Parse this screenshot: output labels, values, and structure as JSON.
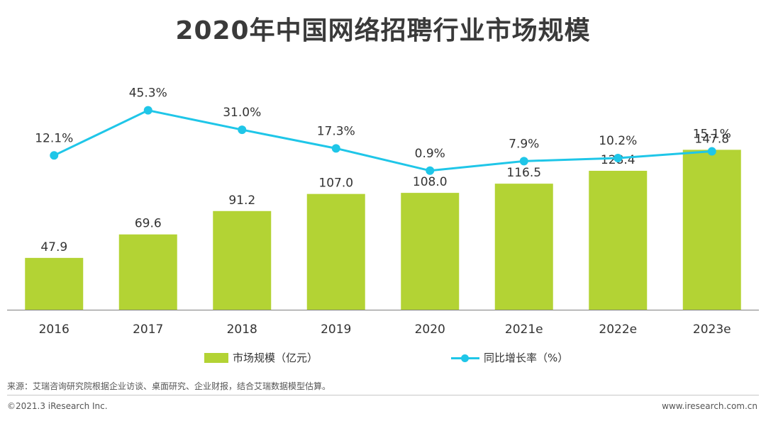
{
  "title": "2020年中国网络招聘行业市场规模",
  "colors": {
    "bar": "#b3d334",
    "line": "#1fc6e8",
    "axis": "#7f7f7f",
    "text": "#333333"
  },
  "chart_data": {
    "type": "bar+line",
    "title": "2020年中国网络招聘行业市场规模",
    "categories": [
      "2016",
      "2017",
      "2018",
      "2019",
      "2020",
      "2021e",
      "2022e",
      "2023e"
    ],
    "series": [
      {
        "name": "市场规模（亿元）",
        "type": "bar",
        "axis": "left",
        "values": [
          47.9,
          69.6,
          91.2,
          107.0,
          108.0,
          116.5,
          128.4,
          147.8
        ],
        "labels": [
          "47.9",
          "69.6",
          "91.2",
          "107.0",
          "108.0",
          "116.5",
          "128.4",
          "147.8"
        ]
      },
      {
        "name": "同比增长率（%）",
        "type": "line",
        "axis": "right",
        "values": [
          12.1,
          45.3,
          31.0,
          17.3,
          0.9,
          7.9,
          10.2,
          15.1
        ],
        "labels": [
          "12.1%",
          "45.3%",
          "31.0%",
          "17.3%",
          "0.9%",
          "7.9%",
          "10.2%",
          "15.1%"
        ]
      }
    ],
    "ylim_left": [
      0,
      150
    ],
    "ylim_right": [
      -150,
      90
    ],
    "grid": false,
    "legend_position": "bottom-center"
  },
  "legend": {
    "bar_label": "市场规模（亿元）",
    "line_label": "同比增长率（%）"
  },
  "source": "来源：艾瑞咨询研究院根据企业访谈、桌面研究、企业财报，结合艾瑞数据模型估算。",
  "footer": {
    "left": "©2021.3 iResearch Inc.",
    "right": "www.iresearch.com.cn"
  }
}
